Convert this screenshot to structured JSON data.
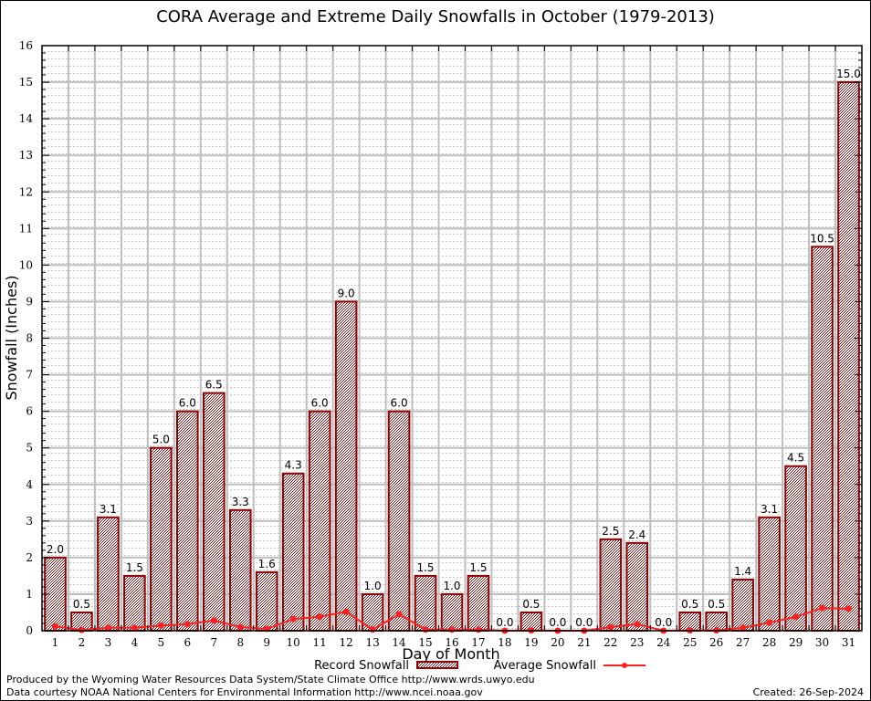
{
  "chart_data": {
    "type": "bar",
    "title": "CORA Average and Extreme Daily Snowfalls in October (1979-2013)",
    "xlabel": "Day of Month",
    "ylabel": "Snowfall (Inches)",
    "ylim": [
      0,
      16
    ],
    "yticks": [
      0,
      1,
      2,
      3,
      4,
      5,
      6,
      7,
      8,
      9,
      10,
      11,
      12,
      13,
      14,
      15,
      16
    ],
    "grid": true,
    "categories": [
      "1",
      "2",
      "3",
      "4",
      "5",
      "6",
      "7",
      "8",
      "9",
      "10",
      "11",
      "12",
      "13",
      "14",
      "15",
      "16",
      "17",
      "18",
      "19",
      "20",
      "21",
      "22",
      "23",
      "24",
      "25",
      "26",
      "27",
      "28",
      "29",
      "30",
      "31"
    ],
    "series": [
      {
        "name": "Record Snowfall",
        "kind": "bar",
        "color": "#8b0000",
        "values": [
          2.0,
          0.5,
          3.1,
          1.5,
          5.0,
          6.0,
          6.5,
          3.3,
          1.6,
          4.3,
          6.0,
          9.0,
          1.0,
          6.0,
          1.5,
          1.0,
          1.5,
          0.0,
          0.5,
          0.0,
          0.0,
          2.5,
          2.4,
          0.0,
          0.5,
          0.5,
          1.4,
          3.1,
          4.5,
          10.5,
          15.0
        ],
        "labels": [
          "2.0",
          "0.5",
          "3.1",
          "1.5",
          "5.0",
          "6.0",
          "6.5",
          "3.3",
          "1.6",
          "4.3",
          "6.0",
          "9.0",
          "1.0",
          "6.0",
          "1.5",
          "1.0",
          "1.5",
          "0.0",
          "0.5",
          "0.0",
          "0.0",
          "2.5",
          "2.4",
          "0.0",
          "0.5",
          "0.5",
          "1.4",
          "3.1",
          "4.5",
          "10.5",
          "15.0"
        ]
      },
      {
        "name": "Average Snowfall",
        "kind": "line",
        "color": "#ff2020",
        "values": [
          0.12,
          0.02,
          0.08,
          0.08,
          0.14,
          0.18,
          0.28,
          0.1,
          0.05,
          0.32,
          0.38,
          0.52,
          0.03,
          0.45,
          0.03,
          0.03,
          0.03,
          0.0,
          0.01,
          0.0,
          0.0,
          0.1,
          0.18,
          0.0,
          0.01,
          0.01,
          0.08,
          0.22,
          0.38,
          0.62,
          0.6
        ]
      }
    ],
    "legend": {
      "placement": "bottom-center",
      "entries": [
        "Record Snowfall",
        "Average Snowfall"
      ]
    }
  },
  "footer": {
    "line1": "Produced by the Wyoming Water Resources Data System/State Climate Office http://www.wrds.uwyo.edu",
    "line2": "Data courtesy NOAA National Centers for Environmental Information http://www.ncei.noaa.gov",
    "created": "Created:  26-Sep-2024"
  }
}
